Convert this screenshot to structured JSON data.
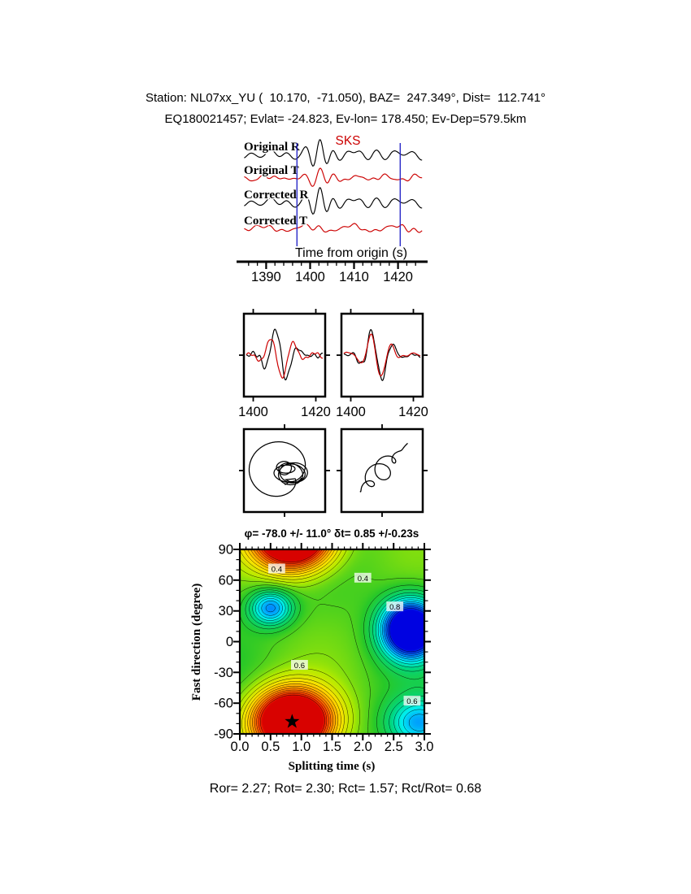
{
  "header": {
    "line1": "Station: NL07xx_YU (  10.170,  -71.050), BAZ=  247.349°, Dist=  112.741°",
    "line2": "EQ180021457; Evlat= -24.823, Ev-lon= 178.450; Ev-Dep=579.5km"
  },
  "waveform_panel": {
    "phase_label": "SKS",
    "axis_label": "Time from origin (s)",
    "time_ticks": [
      1390,
      1400,
      1410,
      1420
    ],
    "time_range": [
      1384,
      1426
    ],
    "window_s": [
      1397,
      1420.5
    ],
    "traces": [
      {
        "label": "Original R",
        "color": "#000000"
      },
      {
        "label": "Original T",
        "color": "#cc0000"
      },
      {
        "label": "Corrected R",
        "color": "#000000"
      },
      {
        "label": "Corrected T",
        "color": "#cc0000"
      }
    ]
  },
  "component_panels": {
    "time_ticks": [
      "1400",
      "1420"
    ],
    "time_tick_values": [
      1400,
      1420
    ],
    "time_range": [
      1397,
      1423
    ],
    "series_colors": [
      "#000000",
      "#cc0000"
    ]
  },
  "splitting_map": {
    "title": "φ= -78.0 +/- 11.0° δt= 0.85 +/-0.23s",
    "xlabel": "Splitting time (s)",
    "ylabel": "Fast direction (degree)",
    "x_ticks": [
      "0.0",
      "0.5",
      "1.0",
      "1.5",
      "2.0",
      "2.5",
      "3.0"
    ],
    "y_ticks": [
      "90",
      "60",
      "30",
      "0",
      "-30",
      "-60",
      "-90"
    ],
    "x_range": [
      0,
      3
    ],
    "y_range": [
      -90,
      90
    ],
    "best": {
      "phi_deg": -78.0,
      "phi_err_deg": 11.0,
      "dt_s": 0.85,
      "dt_err_s": 0.23
    },
    "contour_labels": [
      {
        "text": "0.4",
        "x": 0.6,
        "phi": 71
      },
      {
        "text": "0.4",
        "x": 2.0,
        "phi": 62
      },
      {
        "text": "0.8",
        "x": 2.52,
        "phi": 34
      },
      {
        "text": "0.6",
        "x": 0.97,
        "phi": -23
      },
      {
        "text": "0.6",
        "x": 2.8,
        "phi": -58
      }
    ]
  },
  "stats_line": "Ror= 2.27; Rot= 2.30; Rct= 1.57; Rct/Rot= 0.68",
  "stats": {
    "Ror": 2.27,
    "Rot": 2.3,
    "Rct": 1.57,
    "Rct_over_Rot": 0.68
  },
  "chart_data": [
    {
      "type": "line",
      "title": "SKS waveforms, original and anisotropy-corrected",
      "xlabel": "Time from origin (s)",
      "x_range": [
        1384,
        1426
      ],
      "x_ticks": [
        1390,
        1400,
        1410,
        1420
      ],
      "series": [
        {
          "name": "Original R"
        },
        {
          "name": "Original T"
        },
        {
          "name": "Corrected R"
        },
        {
          "name": "Corrected T"
        }
      ],
      "annotations": [
        {
          "text": "SKS",
          "x": 1408
        }
      ],
      "analysis_window_s": [
        1397,
        1420.5
      ]
    },
    {
      "type": "line",
      "title": "Fast/slow component pair (left: uncorrected, right: corrected)",
      "x_ticks": [
        1400,
        1420
      ]
    },
    {
      "type": "scatter",
      "title": "Particle motion hodograms (left: original elliptical, right: corrected linear)"
    },
    {
      "type": "heatmap",
      "title": "φ= -78.0 +/- 11.0° δt= 0.85 +/-0.23s",
      "xlabel": "Splitting time (s)",
      "ylabel": "Fast direction (degree)",
      "x_range": [
        0,
        3
      ],
      "y_range": [
        -90,
        90
      ],
      "x_ticks": [
        0,
        0.5,
        1,
        1.5,
        2,
        2.5,
        3
      ],
      "y_ticks": [
        90,
        60,
        30,
        0,
        -30,
        -60,
        -90
      ],
      "minimum": {
        "x": 0.85,
        "y": -78
      },
      "marker": "star",
      "labeled_contours": [
        0.4,
        0.6,
        0.8
      ],
      "colormap": "red(min) → green → blue(max)",
      "grid": false,
      "legend": "none"
    }
  ]
}
